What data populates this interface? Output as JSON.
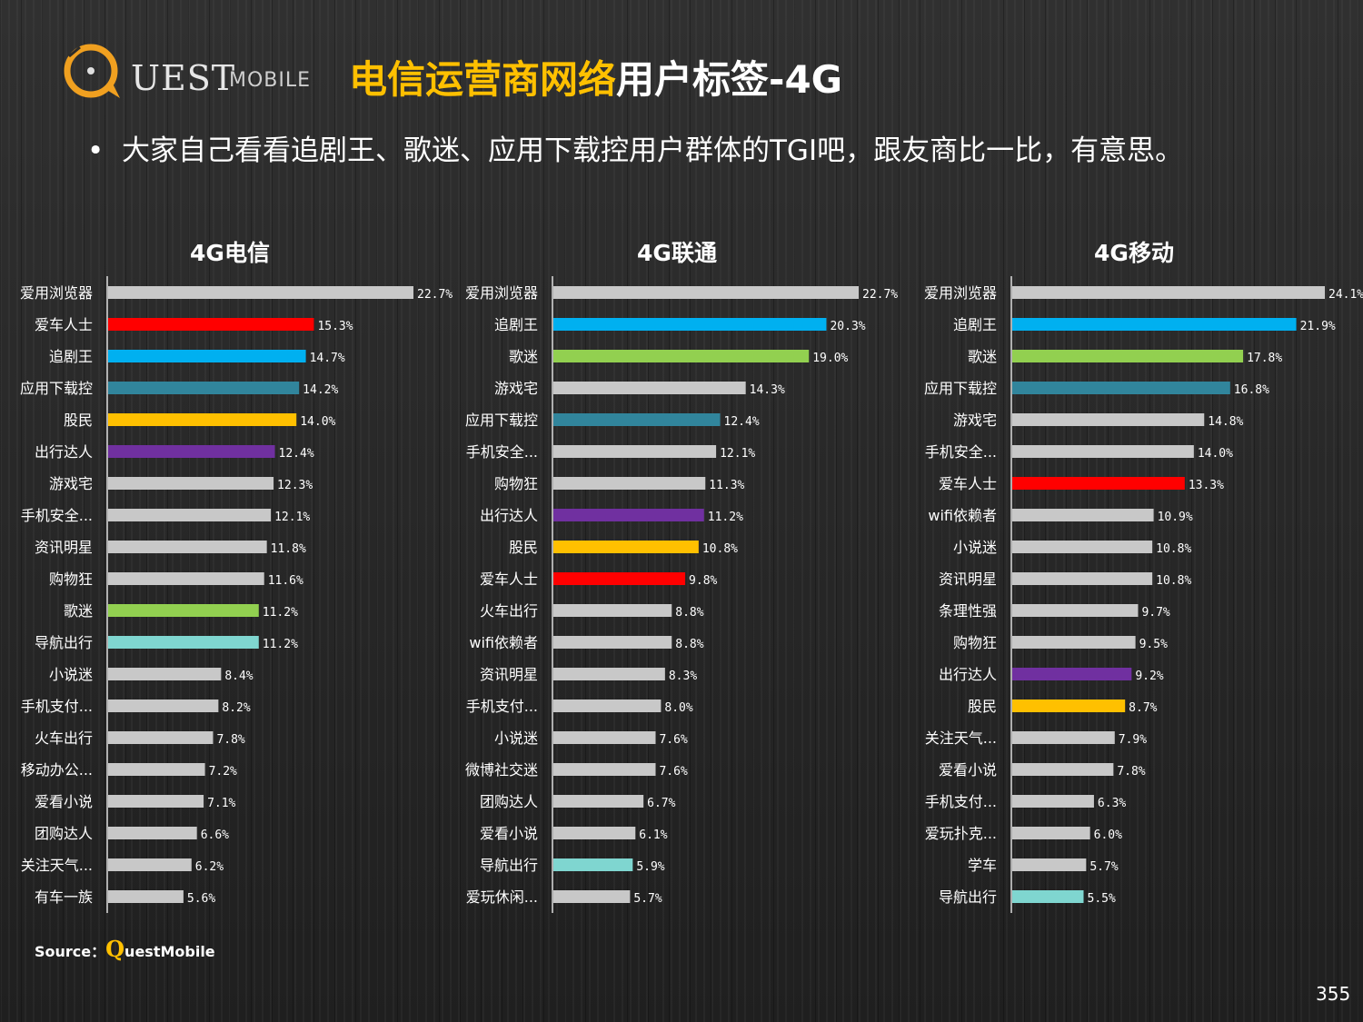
{
  "logo": {
    "text": "UEST",
    "sub": "MOBILE"
  },
  "title_part1": "电信运营商网络",
  "title_part2": "用户标签-4G",
  "bullet": "大家自己看看追剧王、歌迷、应用下载控用户群体的TGI吧，跟友商比一比，有意思。",
  "source": {
    "label": "Source：",
    "q": "Q",
    "rest": "uestMobile"
  },
  "page_number": "355",
  "colors": {
    "gray": "#c8c8c8",
    "red": "#ff0000",
    "blue": "#00b0f0",
    "teal": "#31859c",
    "yellow": "#ffc000",
    "purple": "#7030a0",
    "green": "#92d050",
    "cyan": "#7fd6d0"
  },
  "chart_data": [
    {
      "type": "bar",
      "orientation": "horizontal",
      "title": "4G电信",
      "categories": [
        "爱用浏览器",
        "爱车人士",
        "追剧王",
        "应用下载控",
        "股民",
        "出行达人",
        "游戏宅",
        "手机安全...",
        "资讯明星",
        "购物狂",
        "歌迷",
        "导航出行",
        "小说迷",
        "手机支付...",
        "火车出行",
        "移动办公...",
        "爱看小说",
        "团购达人",
        "关注天气...",
        "有车一族"
      ],
      "values": [
        22.7,
        15.3,
        14.7,
        14.2,
        14.0,
        12.4,
        12.3,
        12.1,
        11.8,
        11.6,
        11.2,
        11.2,
        8.4,
        8.2,
        7.8,
        7.2,
        7.1,
        6.6,
        6.2,
        5.6
      ],
      "labels": [
        "22.7%",
        "15.3%",
        "14.7%",
        "14.2%",
        "14.0%",
        "12.4%",
        "12.3%",
        "12.1%",
        "11.8%",
        "11.6%",
        "11.2%",
        "11.2%",
        "8.4%",
        "8.2%",
        "7.8%",
        "7.2%",
        "7.1%",
        "6.6%",
        "6.2%",
        "5.6%"
      ],
      "bar_colors": [
        "gray",
        "red",
        "blue",
        "teal",
        "yellow",
        "purple",
        "gray",
        "gray",
        "gray",
        "gray",
        "green",
        "cyan",
        "gray",
        "gray",
        "gray",
        "gray",
        "gray",
        "gray",
        "gray",
        "gray"
      ],
      "xlim": [
        0,
        22.7
      ]
    },
    {
      "type": "bar",
      "orientation": "horizontal",
      "title": "4G联通",
      "categories": [
        "爱用浏览器",
        "追剧王",
        "歌迷",
        "游戏宅",
        "应用下载控",
        "手机安全...",
        "购物狂",
        "出行达人",
        "股民",
        "爱车人士",
        "火车出行",
        "wifi依赖者",
        "资讯明星",
        "手机支付...",
        "小说迷",
        "微博社交迷",
        "团购达人",
        "爱看小说",
        "导航出行",
        "爱玩休闲..."
      ],
      "values": [
        22.7,
        20.3,
        19.0,
        14.3,
        12.4,
        12.1,
        11.3,
        11.2,
        10.8,
        9.8,
        8.8,
        8.8,
        8.3,
        8.0,
        7.6,
        7.6,
        6.7,
        6.1,
        5.9,
        5.7
      ],
      "labels": [
        "22.7%",
        "20.3%",
        "19.0%",
        "14.3%",
        "12.4%",
        "12.1%",
        "11.3%",
        "11.2%",
        "10.8%",
        "9.8%",
        "8.8%",
        "8.8%",
        "8.3%",
        "8.0%",
        "7.6%",
        "7.6%",
        "6.7%",
        "6.1%",
        "5.9%",
        "5.7%"
      ],
      "bar_colors": [
        "gray",
        "blue",
        "green",
        "gray",
        "teal",
        "gray",
        "gray",
        "purple",
        "yellow",
        "red",
        "gray",
        "gray",
        "gray",
        "gray",
        "gray",
        "gray",
        "gray",
        "gray",
        "cyan",
        "gray"
      ],
      "xlim": [
        0,
        22.7
      ]
    },
    {
      "type": "bar",
      "orientation": "horizontal",
      "title": "4G移动",
      "categories": [
        "爱用浏览器",
        "追剧王",
        "歌迷",
        "应用下载控",
        "游戏宅",
        "手机安全...",
        "爱车人士",
        "wifi依赖者",
        "小说迷",
        "资讯明星",
        "条理性强",
        "购物狂",
        "出行达人",
        "股民",
        "关注天气...",
        "爱看小说",
        "手机支付...",
        "爱玩扑克...",
        "学车",
        "导航出行"
      ],
      "values": [
        24.1,
        21.9,
        17.8,
        16.8,
        14.8,
        14.0,
        13.3,
        10.9,
        10.8,
        10.8,
        9.7,
        9.5,
        9.2,
        8.7,
        7.9,
        7.8,
        6.3,
        6.0,
        5.7,
        5.5
      ],
      "labels": [
        "24.1%",
        "21.9%",
        "17.8%",
        "16.8%",
        "14.8%",
        "14.0%",
        "13.3%",
        "10.9%",
        "10.8%",
        "10.8%",
        "9.7%",
        "9.5%",
        "9.2%",
        "8.7%",
        "7.9%",
        "7.8%",
        "6.3%",
        "6.0%",
        "5.7%",
        "5.5%"
      ],
      "bar_colors": [
        "gray",
        "blue",
        "green",
        "teal",
        "gray",
        "gray",
        "red",
        "gray",
        "gray",
        "gray",
        "gray",
        "gray",
        "purple",
        "yellow",
        "gray",
        "gray",
        "gray",
        "gray",
        "gray",
        "cyan"
      ],
      "xlim": [
        0,
        24.1
      ]
    }
  ]
}
